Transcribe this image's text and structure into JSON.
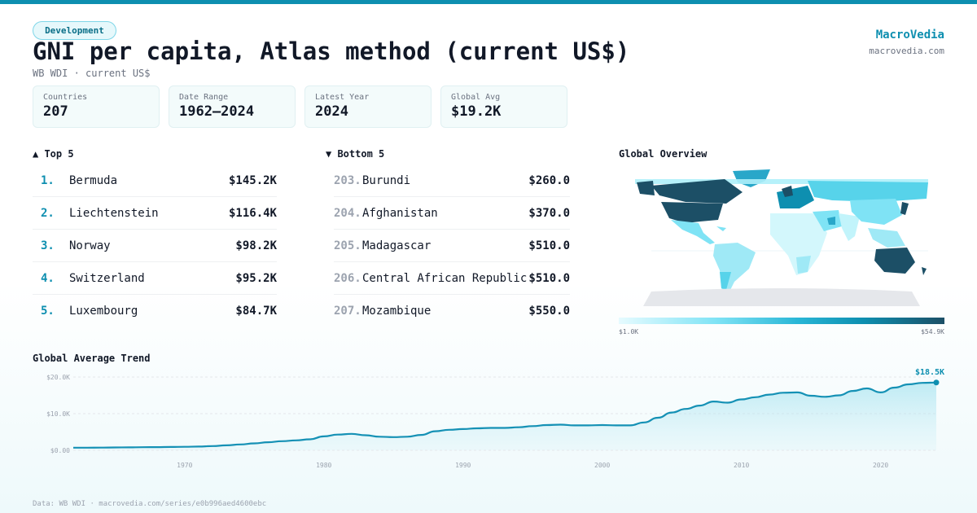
{
  "header": {
    "tag": "Development",
    "title": "GNI per capita, Atlas method (current US$)",
    "subtitle": "WB WDI · current US$",
    "brand": "MacroVedia",
    "brand_url": "macrovedia.com"
  },
  "stats": [
    {
      "label": "Countries",
      "value": "207"
    },
    {
      "label": "Date Range",
      "value": "1962–2024"
    },
    {
      "label": "Latest Year",
      "value": "2024"
    },
    {
      "label": "Global Avg",
      "value": "$19.2K"
    }
  ],
  "top5": {
    "title": "▲ Top 5",
    "items": [
      {
        "rank": "1.",
        "name": "Bermuda",
        "value": "$145.2K"
      },
      {
        "rank": "2.",
        "name": "Liechtenstein",
        "value": "$116.4K"
      },
      {
        "rank": "3.",
        "name": "Norway",
        "value": "$98.2K"
      },
      {
        "rank": "4.",
        "name": "Switzerland",
        "value": "$95.2K"
      },
      {
        "rank": "5.",
        "name": "Luxembourg",
        "value": "$84.7K"
      }
    ]
  },
  "bottom5": {
    "title": "▼ Bottom 5",
    "items": [
      {
        "rank": "203.",
        "name": "Burundi",
        "value": "$260.0"
      },
      {
        "rank": "204.",
        "name": "Afghanistan",
        "value": "$370.0"
      },
      {
        "rank": "205.",
        "name": "Madagascar",
        "value": "$510.0"
      },
      {
        "rank": "206.",
        "name": "Central African Republic",
        "value": "$510.0"
      },
      {
        "rank": "207.",
        "name": "Mozambique",
        "value": "$550.0"
      }
    ]
  },
  "map": {
    "title": "Global Overview",
    "legend_min": "$1.0K",
    "legend_max": "$54.9K",
    "colors": {
      "low": "#e6fbff",
      "mid": "#29b6d6",
      "high": "#1c4f66",
      "nodata": "#e5e7eb"
    }
  },
  "colors": {
    "accent": "#0e8fb0",
    "line": "#1591b5",
    "area": "#d4f1f7"
  },
  "chart_data": {
    "type": "area",
    "title": "Global Average Trend",
    "end_label": "$18.5K",
    "y_ticks": [
      "$0.00",
      "$10.0K",
      "$20.0K"
    ],
    "x_ticks": [
      "1970",
      "1980",
      "1990",
      "2000",
      "2010",
      "2020"
    ],
    "x_tick_values": [
      1970,
      1980,
      1990,
      2000,
      2010,
      2020
    ],
    "y_tick_values": [
      0,
      10000,
      20000
    ],
    "xlim": [
      1962,
      2024
    ],
    "ylim": [
      0,
      20000
    ],
    "grid": true,
    "series": [
      {
        "x": [
          1962,
          1963,
          1964,
          1965,
          1966,
          1967,
          1968,
          1969,
          1970,
          1971,
          1972,
          1973,
          1974,
          1975,
          1976,
          1977,
          1978,
          1979,
          1980,
          1981,
          1982,
          1983,
          1984,
          1985,
          1986,
          1987,
          1988,
          1989,
          1990,
          1991,
          1992,
          1993,
          1994,
          1995,
          1996,
          1997,
          1998,
          1999,
          2000,
          2001,
          2002,
          2003,
          2004,
          2005,
          2006,
          2007,
          2008,
          2009,
          2010,
          2011,
          2012,
          2013,
          2014,
          2015,
          2016,
          2017,
          2018,
          2019,
          2020,
          2021,
          2022,
          2023,
          2024
        ],
        "y": [
          700,
          720,
          740,
          770,
          800,
          840,
          870,
          910,
          960,
          1020,
          1150,
          1350,
          1600,
          1900,
          2200,
          2500,
          2700,
          3000,
          3800,
          4300,
          4500,
          4100,
          3700,
          3600,
          3700,
          4200,
          5200,
          5600,
          5800,
          6000,
          6100,
          6100,
          6300,
          6600,
          6900,
          7000,
          6800,
          6800,
          6900,
          6800,
          6800,
          7600,
          8900,
          10300,
          11300,
          12200,
          13300,
          13000,
          13900,
          14500,
          15200,
          15700,
          15800,
          14900,
          14600,
          15000,
          16200,
          16900,
          15800,
          17100,
          18000,
          18400,
          18500
        ]
      }
    ]
  },
  "footer": "Data: WB WDI · macrovedia.com/series/e0b996aed4600ebc"
}
